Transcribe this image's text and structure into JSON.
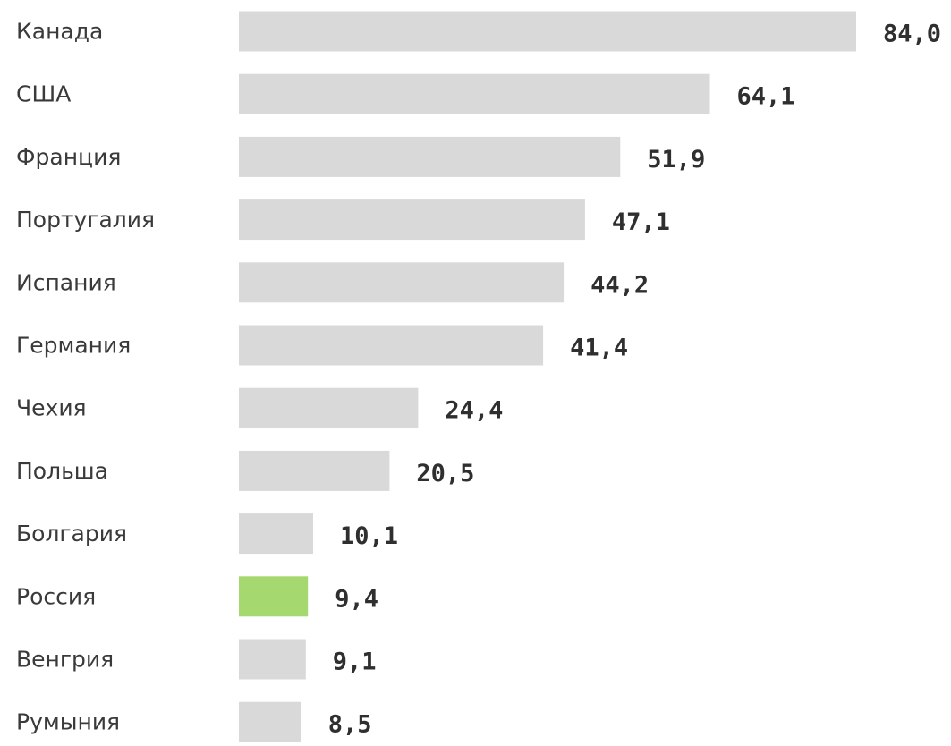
{
  "chart_data": {
    "type": "bar",
    "orientation": "horizontal",
    "categories": [
      "Канада",
      "США",
      "Франция",
      "Португалия",
      "Испания",
      "Германия",
      "Чехия",
      "Польша",
      "Болгария",
      "Россия",
      "Венгрия",
      "Румыния"
    ],
    "values": [
      84.0,
      64.1,
      51.9,
      47.1,
      44.2,
      41.4,
      24.4,
      20.5,
      10.1,
      9.4,
      9.1,
      8.5
    ],
    "value_labels": [
      "84,0",
      "64,1",
      "51,9",
      "47,1",
      "44,2",
      "41,4",
      "24,4",
      "20,5",
      "10,1",
      "9,4",
      "9,1",
      "8,5"
    ],
    "highlight_index": 9,
    "title": "",
    "xlabel": "",
    "ylabel": "",
    "grid": false,
    "legend": "none"
  },
  "colors": {
    "bar": "#d9d9d9",
    "highlight": "#a5d96f",
    "category_text": "#3a3a3a",
    "value_text": "#2f2f2f"
  }
}
